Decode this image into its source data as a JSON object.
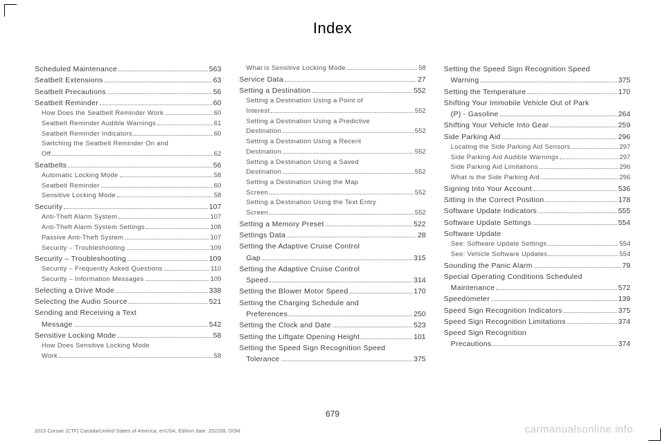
{
  "header": "Index",
  "pagenum": "679",
  "footnote": "2023 Corsair (CTF) Canada/United States of America, enUSA, Edition date: 202208, DOM",
  "watermark": "carmanualsonline.info",
  "col1": [
    {
      "label": "Scheduled Maintenance",
      "pg": "563",
      "sub": false
    },
    {
      "label": "Seatbelt Extensions",
      "pg": "63",
      "sub": false
    },
    {
      "label": "Seatbelt Precautions",
      "pg": "56",
      "sub": false
    },
    {
      "label": "Seatbelt Reminder",
      "pg": "60",
      "sub": false
    },
    {
      "label": "How Does the Seatbelt Reminder Work",
      "pg": "60",
      "sub": true
    },
    {
      "label": "Seatbelt Reminder Audible Warnings",
      "pg": "61",
      "sub": true
    },
    {
      "label": "Seatbelt Reminder Indicators",
      "pg": "60",
      "sub": true
    },
    {
      "label": "Switching the Seatbelt Reminder On and",
      "pg": "",
      "sub": true,
      "nodots": true
    },
    {
      "label": "Off",
      "pg": "62",
      "sub": true,
      "cont": true
    },
    {
      "label": "Seatbelts",
      "pg": "56",
      "sub": false
    },
    {
      "label": "Automatic Locking Mode",
      "pg": "58",
      "sub": true
    },
    {
      "label": "Seatbelt Reminder",
      "pg": "60",
      "sub": true
    },
    {
      "label": "Sensitive Locking Mode",
      "pg": "58",
      "sub": true
    },
    {
      "label": "Security",
      "pg": "107",
      "sub": false
    },
    {
      "label": "Anti-Theft Alarm System",
      "pg": "107",
      "sub": true
    },
    {
      "label": "Anti-Theft Alarm System Settings",
      "pg": "108",
      "sub": true
    },
    {
      "label": "Passive Anti-Theft System",
      "pg": "107",
      "sub": true
    },
    {
      "label": "Security – Troubleshooting",
      "pg": "109",
      "sub": true
    },
    {
      "label": "Security – Troubleshooting",
      "pg": "109",
      "sub": false
    },
    {
      "label": "Security – Frequently Asked Questions",
      "pg": "110",
      "sub": true
    },
    {
      "label": "Security – Information Messages",
      "pg": "109",
      "sub": true
    },
    {
      "label": "Selecting a Drive Mode",
      "pg": "338",
      "sub": false
    },
    {
      "label": "Selecting the Audio Source",
      "pg": "521",
      "sub": false
    },
    {
      "label": "Sending and Receiving a Text",
      "pg": "",
      "sub": false,
      "nodots": true
    },
    {
      "label": "Message",
      "pg": "542",
      "sub": false,
      "cont": true
    },
    {
      "label": "Sensitive Locking Mode",
      "pg": "58",
      "sub": false
    },
    {
      "label": "How Does Sensitive Locking Mode",
      "pg": "",
      "sub": true,
      "nodots": true
    },
    {
      "label": "Work",
      "pg": "58",
      "sub": true,
      "cont": true
    }
  ],
  "col2": [
    {
      "label": "What is Sensitive Locking Mode",
      "pg": "58",
      "sub": true
    },
    {
      "label": "Service Data",
      "pg": "27",
      "sub": false
    },
    {
      "label": "Setting a Destination",
      "pg": "552",
      "sub": false
    },
    {
      "label": "Setting a Destination Using a Point of",
      "pg": "",
      "sub": true,
      "nodots": true
    },
    {
      "label": "Interest",
      "pg": "552",
      "sub": true,
      "cont": true
    },
    {
      "label": "Setting a Destination Using a Predictive",
      "pg": "",
      "sub": true,
      "nodots": true
    },
    {
      "label": "Destination",
      "pg": "552",
      "sub": true,
      "cont": true
    },
    {
      "label": "Setting a Destination Using a Recent",
      "pg": "",
      "sub": true,
      "nodots": true
    },
    {
      "label": "Destination",
      "pg": "552",
      "sub": true,
      "cont": true
    },
    {
      "label": "Setting a Destination Using a Saved",
      "pg": "",
      "sub": true,
      "nodots": true
    },
    {
      "label": "Destination",
      "pg": "552",
      "sub": true,
      "cont": true
    },
    {
      "label": "Setting a Destination Using the Map",
      "pg": "",
      "sub": true,
      "nodots": true
    },
    {
      "label": "Screen",
      "pg": "552",
      "sub": true,
      "cont": true
    },
    {
      "label": "Setting a Destination Using the Text Entry",
      "pg": "",
      "sub": true,
      "nodots": true
    },
    {
      "label": "Screen",
      "pg": "552",
      "sub": true,
      "cont": true
    },
    {
      "label": "Setting a Memory Preset",
      "pg": "522",
      "sub": false
    },
    {
      "label": "Settings Data",
      "pg": "28",
      "sub": false
    },
    {
      "label": "Setting the Adaptive Cruise Control",
      "pg": "",
      "sub": false,
      "nodots": true
    },
    {
      "label": "Gap",
      "pg": "315",
      "sub": false,
      "cont": true
    },
    {
      "label": "Setting the Adaptive Cruise Control",
      "pg": "",
      "sub": false,
      "nodots": true
    },
    {
      "label": "Speed",
      "pg": "314",
      "sub": false,
      "cont": true
    },
    {
      "label": "Setting the Blower Motor Speed",
      "pg": "170",
      "sub": false
    },
    {
      "label": "Setting the Charging Schedule and",
      "pg": "",
      "sub": false,
      "nodots": true
    },
    {
      "label": "Preferences",
      "pg": "250",
      "sub": false,
      "cont": true
    },
    {
      "label": "Setting the Clock and Date",
      "pg": "523",
      "sub": false
    },
    {
      "label": "Setting the Liftgate Opening Height",
      "pg": "101",
      "sub": false
    },
    {
      "label": "Setting the Speed Sign Recognition Speed",
      "pg": "",
      "sub": false,
      "nodots": true
    },
    {
      "label": "Tolerance",
      "pg": "375",
      "sub": false,
      "cont": true
    }
  ],
  "col3": [
    {
      "label": "Setting the Speed Sign Recognition Speed",
      "pg": "",
      "sub": false,
      "nodots": true
    },
    {
      "label": "Warning",
      "pg": "375",
      "sub": false,
      "cont": true
    },
    {
      "label": "Setting the Temperature",
      "pg": "170",
      "sub": false
    },
    {
      "label": "Shifting Your Immobile Vehicle Out of Park",
      "pg": "",
      "sub": false,
      "nodots": true
    },
    {
      "label": "(P) - Gasoline",
      "pg": "264",
      "sub": false,
      "cont": true
    },
    {
      "label": "Shifting Your Vehicle Into Gear",
      "pg": "259",
      "sub": false
    },
    {
      "label": "Side Parking Aid",
      "pg": "296",
      "sub": false
    },
    {
      "label": "Locating the Side Parking Aid Sensors",
      "pg": "297",
      "sub": true
    },
    {
      "label": "Side Parking Aid Audible Warnings",
      "pg": "297",
      "sub": true
    },
    {
      "label": "Side Parking Aid Limitations",
      "pg": "296",
      "sub": true
    },
    {
      "label": "What is the Side Parking Aid",
      "pg": "296",
      "sub": true
    },
    {
      "label": "Signing Into Your Account",
      "pg": "536",
      "sub": false
    },
    {
      "label": "Sitting in the Correct Position",
      "pg": "178",
      "sub": false
    },
    {
      "label": "Software Update Indicators",
      "pg": "555",
      "sub": false
    },
    {
      "label": "Software Update Settings",
      "pg": "554",
      "sub": false
    },
    {
      "label": "Software Update",
      "pg": "",
      "sub": false,
      "nodots": true
    },
    {
      "label": "See: Software Update Settings",
      "pg": "554",
      "sub": true
    },
    {
      "label": "See: Vehicle Software Updates",
      "pg": "554",
      "sub": true
    },
    {
      "label": "Sounding the Panic Alarm",
      "pg": "79",
      "sub": false
    },
    {
      "label": "Special Operating Conditions Scheduled",
      "pg": "",
      "sub": false,
      "nodots": true
    },
    {
      "label": "Maintenance",
      "pg": "572",
      "sub": false,
      "cont": true
    },
    {
      "label": "Speedometer",
      "pg": "139",
      "sub": false
    },
    {
      "label": "Speed Sign Recognition Indicators",
      "pg": "375",
      "sub": false
    },
    {
      "label": "Speed Sign Recognition Limitations",
      "pg": "374",
      "sub": false
    },
    {
      "label": "Speed Sign Recognition",
      "pg": "",
      "sub": false,
      "nodots": true
    },
    {
      "label": "Precautions",
      "pg": "374",
      "sub": false,
      "cont": true
    }
  ]
}
